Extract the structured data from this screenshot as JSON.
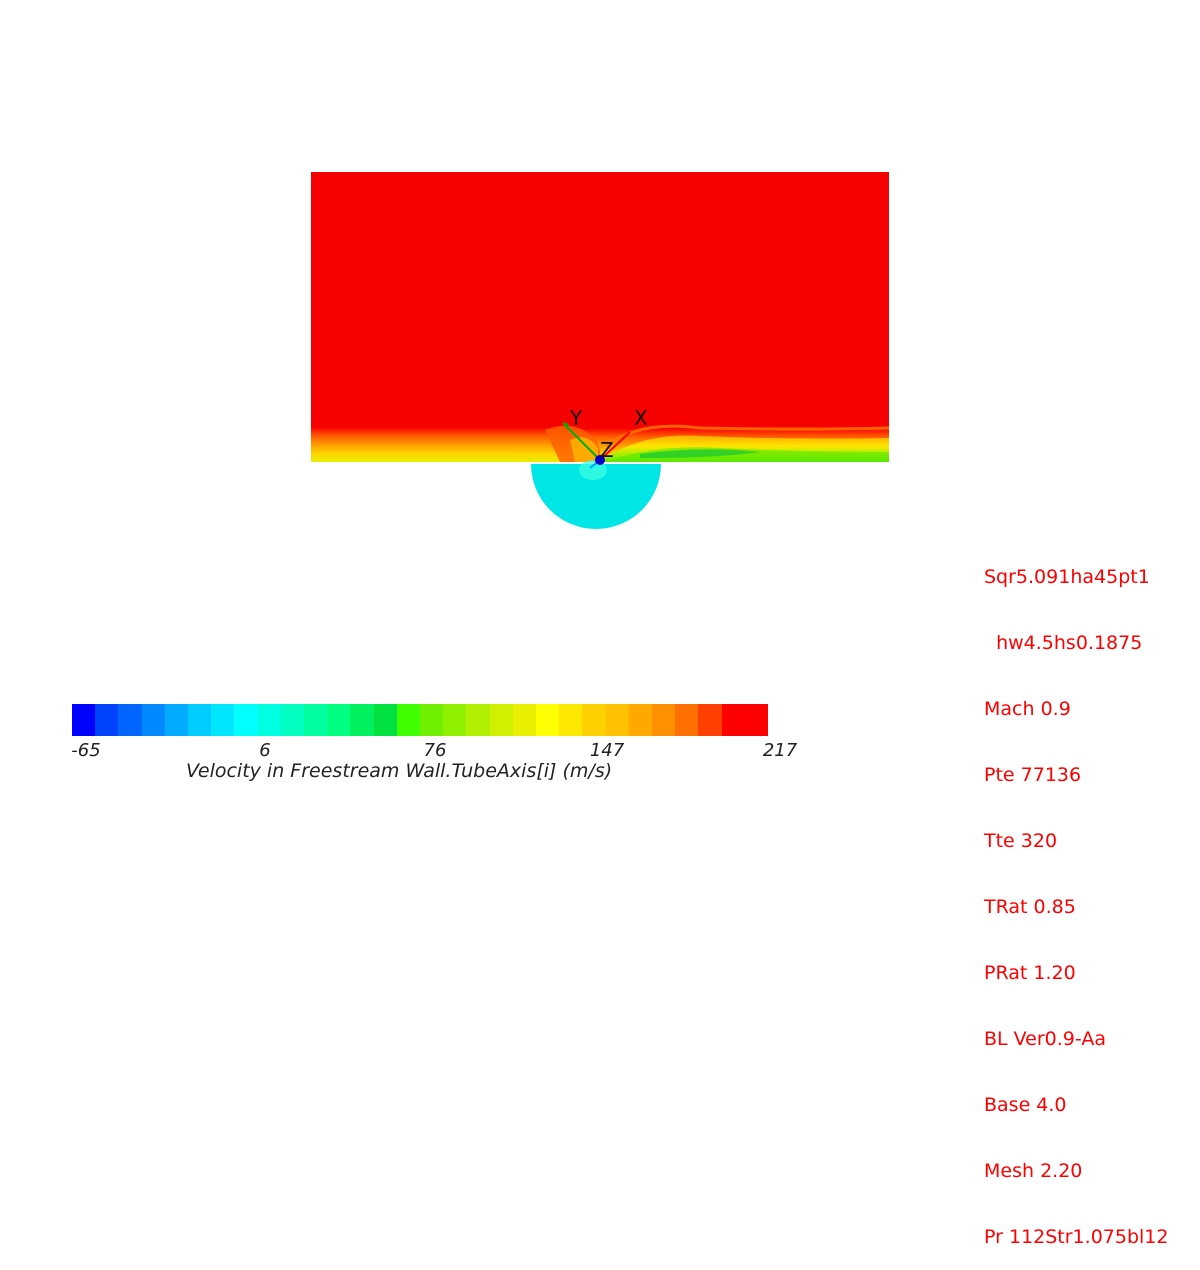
{
  "axes": {
    "x_label": "X",
    "y_label": "Y",
    "z_label": "Z"
  },
  "legend": {
    "title": "Velocity in Freestream Wall.TubeAxis[i] (m/s)",
    "ticks": [
      "-65",
      "6",
      "76",
      "147",
      "217"
    ],
    "min": -65,
    "max": 217,
    "colors": [
      "#0000ff",
      "#0044ff",
      "#0066ff",
      "#0088ff",
      "#00aaff",
      "#00ccff",
      "#00e6ff",
      "#00ffff",
      "#00ffe0",
      "#00ffc0",
      "#00ffa0",
      "#00ff80",
      "#00f060",
      "#00e040",
      "#40ff00",
      "#70f000",
      "#90f000",
      "#b0f000",
      "#d0f000",
      "#e8f000",
      "#ffff00",
      "#ffe800",
      "#ffd000",
      "#ffc000",
      "#ffa800",
      "#ff9000",
      "#ff7000",
      "#ff4000",
      "#ff0000",
      "#ff0000"
    ]
  },
  "run_info": [
    "Sqr5.091ha45pt1",
    "  hw4.5hs0.1875",
    "Mach 0.9",
    "Pte 77136",
    "Tte 320",
    "TRat 0.85",
    "PRat 1.20",
    "BL Ver0.9-Aa",
    "Base 4.0",
    "Mesh 2.20",
    "Pr 112Str1.075bl12"
  ],
  "colors": {
    "freestream": "#f70000",
    "jet_core": "#00e6e6",
    "run_info_text": "#ff0000",
    "axis_text": "#111111"
  }
}
